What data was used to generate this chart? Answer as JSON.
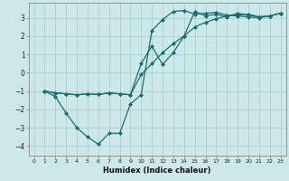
{
  "xlabel": "Humidex (Indice chaleur)",
  "ylabel": "",
  "bg_color": "#cce8e8",
  "grid_color": "#aacfcf",
  "line_color": "#1a6e6e",
  "xlim": [
    -0.5,
    23.5
  ],
  "ylim": [
    -4.5,
    3.8
  ],
  "xticks": [
    0,
    1,
    2,
    3,
    4,
    5,
    6,
    7,
    8,
    9,
    10,
    11,
    12,
    13,
    14,
    15,
    16,
    17,
    18,
    19,
    20,
    21,
    22,
    23
  ],
  "yticks": [
    -4,
    -3,
    -2,
    -1,
    0,
    1,
    2,
    3
  ],
  "line1_x": [
    1,
    2,
    3,
    4,
    5,
    6,
    7,
    8,
    9,
    10,
    11,
    12,
    13,
    14,
    15,
    16,
    17,
    18,
    19,
    20,
    21,
    22,
    23
  ],
  "line1_y": [
    -1.0,
    -1.3,
    -2.2,
    -3.0,
    -3.5,
    -3.9,
    -3.3,
    -3.3,
    -1.7,
    -1.2,
    2.3,
    2.9,
    3.35,
    3.4,
    3.2,
    3.25,
    3.3,
    3.15,
    3.1,
    3.05,
    3.0,
    3.1,
    3.25
  ],
  "line2_x": [
    1,
    2,
    3,
    4,
    5,
    6,
    7,
    8,
    9,
    10,
    11,
    12,
    13,
    14,
    15,
    16,
    17,
    18,
    19,
    20,
    21,
    22,
    23
  ],
  "line2_y": [
    -1.0,
    -1.1,
    -1.15,
    -1.2,
    -1.15,
    -1.18,
    -1.1,
    -1.15,
    -1.2,
    0.5,
    1.45,
    0.45,
    1.1,
    2.0,
    3.35,
    3.1,
    3.2,
    3.05,
    3.25,
    3.15,
    3.05,
    3.1,
    3.25
  ],
  "line3_x": [
    1,
    2,
    3,
    4,
    5,
    6,
    7,
    8,
    9,
    10,
    11,
    12,
    13,
    14,
    15,
    16,
    17,
    18,
    19,
    20,
    21,
    22,
    23
  ],
  "line3_y": [
    -1.0,
    -1.1,
    -1.15,
    -1.2,
    -1.15,
    -1.18,
    -1.1,
    -1.15,
    -1.2,
    -0.1,
    0.5,
    1.1,
    1.6,
    2.0,
    2.5,
    2.75,
    2.95,
    3.1,
    3.15,
    3.2,
    3.05,
    3.1,
    3.25
  ]
}
